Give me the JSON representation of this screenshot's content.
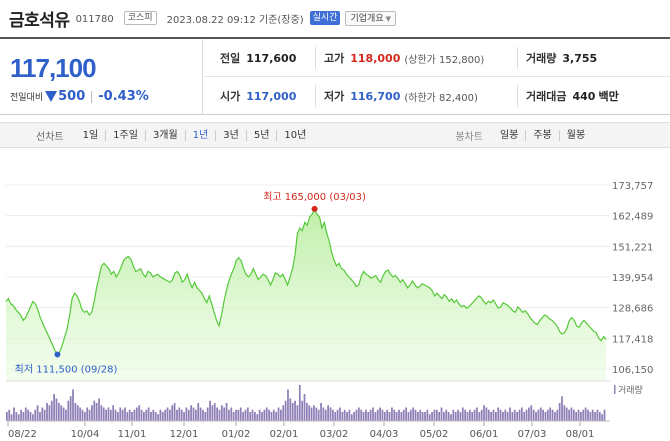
{
  "header": {
    "name": "금호석유",
    "code": "011780",
    "market": "코스피",
    "timestamp": "2023.08.22 09:12 기준(장중)",
    "realtime": "실시간",
    "company_info": "기업개요"
  },
  "price": {
    "current": "117,100",
    "change_label": "전일대비",
    "change_amount": "500",
    "change_pct": "-0.43%",
    "direction": "down"
  },
  "metrics": {
    "prev_close": {
      "label": "전일",
      "value": "117,600"
    },
    "high": {
      "label": "고가",
      "value": "118,000",
      "sub": "(상한가 152,800)"
    },
    "volume": {
      "label": "거래량",
      "value": "3,755"
    },
    "open": {
      "label": "시가",
      "value": "117,000"
    },
    "low": {
      "label": "저가",
      "value": "116,700",
      "sub": "(하한가 82,400)"
    },
    "turnover": {
      "label": "거래대금",
      "value": "440",
      "unit": "백만"
    }
  },
  "tabs": {
    "line_title": "선차트",
    "periods": [
      "1일",
      "1주일",
      "3개월",
      "1년",
      "3년",
      "5년",
      "10년"
    ],
    "active": "1년",
    "candle_title": "봉차트",
    "candles": [
      "일봉",
      "주봉",
      "월봉"
    ]
  },
  "colors": {
    "accent_blue": "#2f5fc9",
    "up_red": "#d3281c",
    "line_green": "#55c83a",
    "fill_green": "#c9f2b4",
    "volume_purple": "#8f7fb7"
  },
  "chart_data": {
    "type": "area",
    "x_ticks": [
      "08/22",
      "10/04",
      "11/01",
      "12/01",
      "01/02",
      "02/01",
      "03/02",
      "04/03",
      "05/02",
      "06/01",
      "07/03",
      "08/01"
    ],
    "y_ticks": [
      173757,
      162489,
      151221,
      139954,
      128686,
      117418,
      106150
    ],
    "y_tick_labels": [
      "173,757",
      "162,489",
      "151,221",
      "139,954",
      "128,686",
      "117,418",
      "106,150"
    ],
    "ylim": [
      106150,
      173757
    ],
    "high_annotation": "최고 165,000 (03/03)",
    "low_annotation": "최저 111,500 (09/28)",
    "volume_label": "거래량",
    "series": [
      {
        "values": [
          131000,
          132000,
          130000,
          129500,
          128000,
          127000,
          126000,
          124000,
          125000,
          127000,
          129000,
          131000,
          130000,
          128000,
          125000,
          123000,
          121000,
          119000,
          117000,
          115000,
          113000,
          111500,
          112500,
          115000,
          118000,
          121000,
          126000,
          132000,
          134000,
          133000,
          131000,
          128000,
          127000,
          127500,
          126000,
          127000,
          131000,
          136000,
          140000,
          144000,
          145000,
          144000,
          143000,
          141000,
          142000,
          140000,
          141500,
          143500,
          146000,
          147000,
          147500,
          146500,
          144000,
          142000,
          142500,
          143000,
          141000,
          140000,
          142000,
          141500,
          140000,
          140500,
          141000,
          140000,
          139500,
          139000,
          138500,
          138000,
          139000,
          141500,
          142000,
          140500,
          138000,
          139000,
          141000,
          138000,
          136000,
          138000,
          136000,
          135000,
          134000,
          132000,
          130500,
          133000,
          130000,
          127000,
          124000,
          122000,
          126000,
          131000,
          135000,
          138500,
          141000,
          143000,
          146000,
          147000,
          146000,
          143000,
          141000,
          140000,
          141000,
          143000,
          141000,
          139000,
          140000,
          141000,
          140500,
          139000,
          137000,
          139000,
          141500,
          141000,
          140000,
          141000,
          139000,
          137000,
          140000,
          143000,
          148000,
          156000,
          158000,
          157000,
          160000,
          159000,
          162000,
          163000,
          165000,
          163000,
          162000,
          158000,
          160000,
          156000,
          153000,
          149000,
          146000,
          144000,
          145000,
          143000,
          142500,
          141000,
          140000,
          139000,
          138000,
          136500,
          137000,
          140000,
          142000,
          141000,
          140500,
          139500,
          140000,
          140500,
          139000,
          138000,
          140500,
          142000,
          142500,
          141000,
          140000,
          140500,
          139500,
          138000,
          139000,
          137500,
          136000,
          137000,
          138500,
          137000,
          136000,
          136500,
          137500,
          137000,
          136500,
          136000,
          135000,
          133000,
          134000,
          133000,
          132000,
          133500,
          132500,
          131000,
          132000,
          130500,
          131500,
          130000,
          129000,
          129500,
          128500,
          129000,
          130000,
          131000,
          132000,
          133000,
          132500,
          131000,
          130000,
          131000,
          130500,
          131500,
          130000,
          128500,
          129000,
          130500,
          130000,
          129500,
          128500,
          127500,
          127000,
          129000,
          128000,
          127000,
          127500,
          126500,
          125000,
          124000,
          123000,
          122500,
          124000,
          125000,
          126000,
          125500,
          124500,
          124000,
          123000,
          122000,
          120000,
          119000,
          119500,
          121000,
          124000,
          125000,
          124000,
          122000,
          121500,
          123000,
          124000,
          123000,
          122000,
          121000,
          120000,
          119500,
          117500,
          116500,
          118000,
          117000
        ]
      }
    ],
    "volume": [
      4,
      5,
      3,
      6,
      4,
      3,
      5,
      4,
      6,
      5,
      4,
      3,
      5,
      7,
      4,
      6,
      5,
      8,
      7,
      9,
      12,
      10,
      8,
      7,
      6,
      5,
      9,
      11,
      14,
      8,
      7,
      6,
      5,
      4,
      6,
      5,
      7,
      9,
      8,
      10,
      7,
      6,
      5,
      6,
      5,
      7,
      5,
      4,
      6,
      5,
      6,
      4,
      5,
      4,
      5,
      6,
      7,
      5,
      4,
      5,
      6,
      4,
      5,
      4,
      3,
      5,
      4,
      5,
      6,
      5,
      7,
      8,
      5,
      6,
      5,
      4,
      6,
      5,
      7,
      6,
      5,
      8,
      6,
      5,
      4,
      6,
      9,
      7,
      8,
      6,
      5,
      7,
      6,
      8,
      5,
      6,
      4,
      5,
      5,
      6,
      4,
      5,
      6,
      4,
      5,
      4,
      3,
      5,
      4,
      5,
      6,
      5,
      4,
      5,
      4,
      6,
      5,
      7,
      9,
      14,
      10,
      8,
      9,
      7,
      16,
      9,
      12,
      8,
      7,
      6,
      7,
      6,
      5,
      8,
      6,
      5,
      7,
      6,
      5,
      4,
      5,
      6,
      4,
      5,
      4,
      5,
      3,
      4,
      5,
      6,
      5,
      4,
      5,
      4,
      5,
      6,
      4,
      5,
      6,
      5,
      4,
      5,
      4,
      6,
      5,
      4,
      5,
      4,
      5,
      6,
      4,
      5,
      6,
      5,
      4,
      5,
      4,
      4,
      5,
      3,
      4,
      5,
      5,
      4,
      6,
      4,
      5,
      4,
      3,
      5,
      4,
      5,
      4,
      6,
      5,
      4,
      5,
      4,
      5,
      6,
      4,
      5,
      7,
      6,
      5,
      4,
      5,
      4,
      6,
      5,
      4,
      5,
      4,
      6,
      4,
      5,
      4,
      5,
      6,
      4,
      5,
      6,
      7,
      5,
      4,
      5,
      6,
      5,
      4,
      5,
      6,
      5,
      4,
      5,
      8,
      11,
      7,
      6,
      5,
      6,
      5,
      4,
      5,
      4,
      5,
      6,
      5,
      4,
      5,
      4,
      5,
      4,
      3,
      5
    ]
  }
}
